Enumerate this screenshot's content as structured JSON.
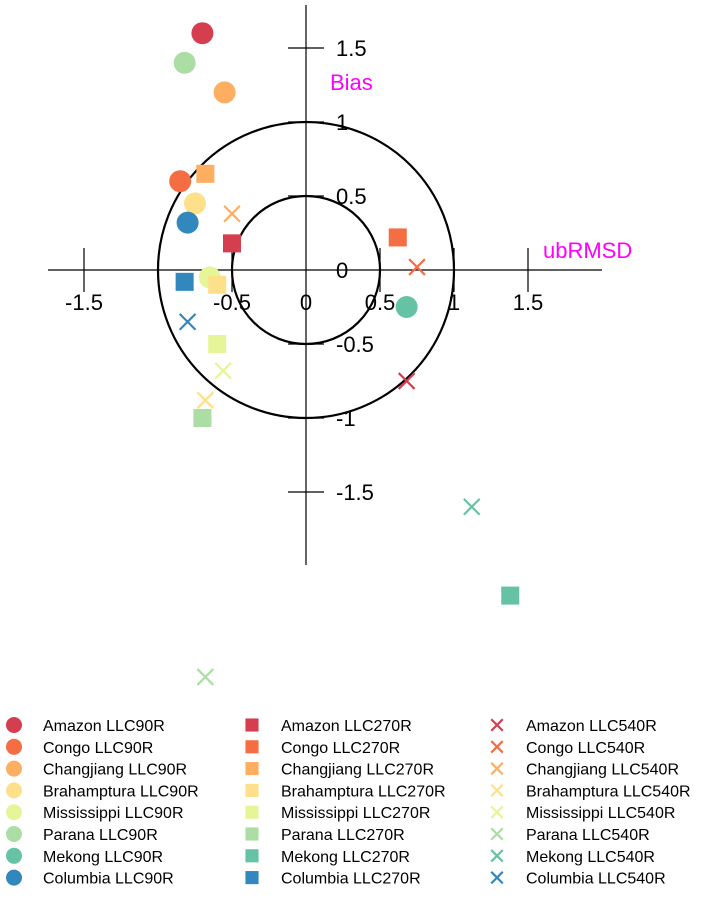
{
  "chart_data": {
    "type": "scatter",
    "xlabel": "ubRMSD",
    "ylabel": "Bias",
    "x_ticks": [
      {
        "value": -1.5,
        "label": "-1.5"
      },
      {
        "value": -0.5,
        "label": "-0.5"
      },
      {
        "value": 0,
        "label": "0"
      },
      {
        "value": 0.5,
        "label": "0.5"
      },
      {
        "value": 1,
        "label": "1"
      },
      {
        "value": 1.5,
        "label": "1.5"
      }
    ],
    "y_ticks": [
      {
        "value": 1.5,
        "label": "1.5"
      },
      {
        "value": 1,
        "label": "1"
      },
      {
        "value": 0.5,
        "label": "0.5"
      },
      {
        "value": 0,
        "label": "0"
      },
      {
        "value": -0.5,
        "label": "-0.5"
      },
      {
        "value": -1,
        "label": "-1"
      },
      {
        "value": -1.5,
        "label": "-1.5"
      }
    ],
    "circles": [
      0.5,
      1
    ],
    "marker_shapes": {
      "LLC90R": "circle",
      "LLC270R": "square",
      "LLC540R": "x"
    },
    "series": [
      {
        "name": "Amazon LLC90R",
        "river": "Amazon",
        "color": "#d53e4f",
        "marker": "circle",
        "x": -0.7,
        "y": 1.6
      },
      {
        "name": "Congo LLC90R",
        "river": "Congo",
        "color": "#f46d43",
        "marker": "circle",
        "x": -0.85,
        "y": 0.6
      },
      {
        "name": "Changjiang LLC90R",
        "river": "Changjiang",
        "color": "#fdae61",
        "marker": "circle",
        "x": -0.55,
        "y": 1.2
      },
      {
        "name": "Brahamptura LLC90R",
        "river": "Brahamptura",
        "color": "#fee08b",
        "marker": "circle",
        "x": -0.75,
        "y": 0.45
      },
      {
        "name": "Mississippi LLC90R",
        "river": "Mississippi",
        "color": "#e6f598",
        "marker": "circle",
        "x": -0.65,
        "y": -0.05
      },
      {
        "name": "Parana LLC90R",
        "river": "Parana",
        "color": "#abdda4",
        "marker": "circle",
        "x": -0.82,
        "y": 1.4
      },
      {
        "name": "Mekong LLC90R",
        "river": "Mekong",
        "color": "#66c2a5",
        "marker": "circle",
        "x": 0.68,
        "y": -0.25
      },
      {
        "name": "Columbia LLC90R",
        "river": "Columbia",
        "color": "#3288bd",
        "marker": "circle",
        "x": -0.8,
        "y": 0.32
      },
      {
        "name": "Amazon LLC270R",
        "river": "Amazon",
        "color": "#d53e4f",
        "marker": "square",
        "x": -0.5,
        "y": 0.18
      },
      {
        "name": "Congo LLC270R",
        "river": "Congo",
        "color": "#f46d43",
        "marker": "square",
        "x": 0.62,
        "y": 0.22
      },
      {
        "name": "Changjiang LLC270R",
        "river": "Changjiang",
        "color": "#fdae61",
        "marker": "square",
        "x": -0.68,
        "y": 0.65
      },
      {
        "name": "Brahamptura LLC270R",
        "river": "Brahamptura",
        "color": "#fee08b",
        "marker": "square",
        "x": -0.6,
        "y": -0.1
      },
      {
        "name": "Mississippi LLC270R",
        "river": "Mississippi",
        "color": "#e6f598",
        "marker": "square",
        "x": -0.6,
        "y": -0.5
      },
      {
        "name": "Parana LLC270R",
        "river": "Parana",
        "color": "#abdda4",
        "marker": "square",
        "x": -0.7,
        "y": -1.0
      },
      {
        "name": "Mekong LLC270R",
        "river": "Mekong",
        "color": "#66c2a5",
        "marker": "square",
        "x": 1.38,
        "y": -2.2
      },
      {
        "name": "Columbia LLC270R",
        "river": "Columbia",
        "color": "#3288bd",
        "marker": "square",
        "x": -0.82,
        "y": -0.08
      },
      {
        "name": "Amazon LLC540R",
        "river": "Amazon",
        "color": "#d53e4f",
        "marker": "x",
        "x": 0.68,
        "y": -0.75
      },
      {
        "name": "Congo LLC540R",
        "river": "Congo",
        "color": "#f46d43",
        "marker": "x",
        "x": 0.75,
        "y": 0.02
      },
      {
        "name": "Changjiang LLC540R",
        "river": "Changjiang",
        "color": "#fdae61",
        "marker": "x",
        "x": -0.5,
        "y": 0.38
      },
      {
        "name": "Brahamptura LLC540R",
        "river": "Brahamptura",
        "color": "#fee08b",
        "marker": "x",
        "x": -0.68,
        "y": -0.88
      },
      {
        "name": "Mississippi LLC540R",
        "river": "Mississippi",
        "color": "#e6f598",
        "marker": "x",
        "x": -0.56,
        "y": -0.68
      },
      {
        "name": "Parana LLC540R",
        "river": "Parana",
        "color": "#abdda4",
        "marker": "x",
        "x": -0.68,
        "y": -2.75
      },
      {
        "name": "Mekong LLC540R",
        "river": "Mekong",
        "color": "#66c2a5",
        "marker": "x",
        "x": 1.12,
        "y": -1.6
      },
      {
        "name": "Columbia LLC540R",
        "river": "Columbia",
        "color": "#3288bd",
        "marker": "x",
        "x": -0.8,
        "y": -0.35
      }
    ]
  }
}
